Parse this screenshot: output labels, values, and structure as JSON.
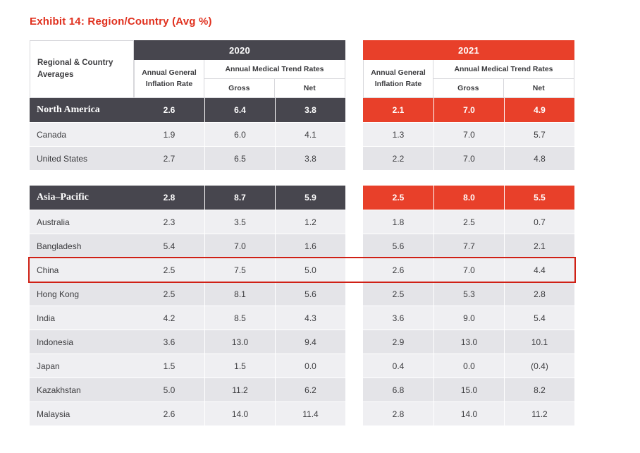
{
  "title": "Exhibit 14: Region/Country (Avg %)",
  "header": {
    "row_header": "Regional & Country Averages",
    "years": [
      {
        "year": "2020",
        "inflation": "Annual General Inflation Rate",
        "trend": "Annual Medical Trend Rates",
        "gross": "Gross",
        "net": "Net"
      },
      {
        "year": "2021",
        "inflation": "Annual General Inflation Rate",
        "trend": "Annual Medical Trend Rates",
        "gross": "Gross",
        "net": "Net"
      }
    ]
  },
  "colors": {
    "title_red": "#e0301e",
    "header_dark": "#47464e",
    "header_red": "#e8402a",
    "highlight_border": "#cf2015",
    "stripe_light": "#efeff2",
    "stripe_dark": "#e4e4e8"
  },
  "sections": [
    {
      "region": {
        "name": "North America",
        "v2020": [
          "2.6",
          "6.4",
          "3.8"
        ],
        "v2021": [
          "2.1",
          "7.0",
          "4.9"
        ]
      },
      "rows": [
        {
          "name": "Canada",
          "v2020": [
            "1.9",
            "6.0",
            "4.1"
          ],
          "v2021": [
            "1.3",
            "7.0",
            "5.7"
          ],
          "highlight": false
        },
        {
          "name": "United States",
          "v2020": [
            "2.7",
            "6.5",
            "3.8"
          ],
          "v2021": [
            "2.2",
            "7.0",
            "4.8"
          ],
          "highlight": false
        }
      ]
    },
    {
      "region": {
        "name": "Asia–Pacific",
        "v2020": [
          "2.8",
          "8.7",
          "5.9"
        ],
        "v2021": [
          "2.5",
          "8.0",
          "5.5"
        ]
      },
      "rows": [
        {
          "name": "Australia",
          "v2020": [
            "2.3",
            "3.5",
            "1.2"
          ],
          "v2021": [
            "1.8",
            "2.5",
            "0.7"
          ],
          "highlight": false
        },
        {
          "name": "Bangladesh",
          "v2020": [
            "5.4",
            "7.0",
            "1.6"
          ],
          "v2021": [
            "5.6",
            "7.7",
            "2.1"
          ],
          "highlight": false
        },
        {
          "name": "China",
          "v2020": [
            "2.5",
            "7.5",
            "5.0"
          ],
          "v2021": [
            "2.6",
            "7.0",
            "4.4"
          ],
          "highlight": true
        },
        {
          "name": "Hong Kong",
          "v2020": [
            "2.5",
            "8.1",
            "5.6"
          ],
          "v2021": [
            "2.5",
            "5.3",
            "2.8"
          ],
          "highlight": false
        },
        {
          "name": "India",
          "v2020": [
            "4.2",
            "8.5",
            "4.3"
          ],
          "v2021": [
            "3.6",
            "9.0",
            "5.4"
          ],
          "highlight": false
        },
        {
          "name": "Indonesia",
          "v2020": [
            "3.6",
            "13.0",
            "9.4"
          ],
          "v2021": [
            "2.9",
            "13.0",
            "10.1"
          ],
          "highlight": false
        },
        {
          "name": "Japan",
          "v2020": [
            "1.5",
            "1.5",
            "0.0"
          ],
          "v2021": [
            "0.4",
            "0.0",
            "(0.4)"
          ],
          "highlight": false
        },
        {
          "name": "Kazakhstan",
          "v2020": [
            "5.0",
            "11.2",
            "6.2"
          ],
          "v2021": [
            "6.8",
            "15.0",
            "8.2"
          ],
          "highlight": false
        },
        {
          "name": "Malaysia",
          "v2020": [
            "2.6",
            "14.0",
            "11.4"
          ],
          "v2021": [
            "2.8",
            "14.0",
            "11.2"
          ],
          "highlight": false
        }
      ]
    }
  ]
}
